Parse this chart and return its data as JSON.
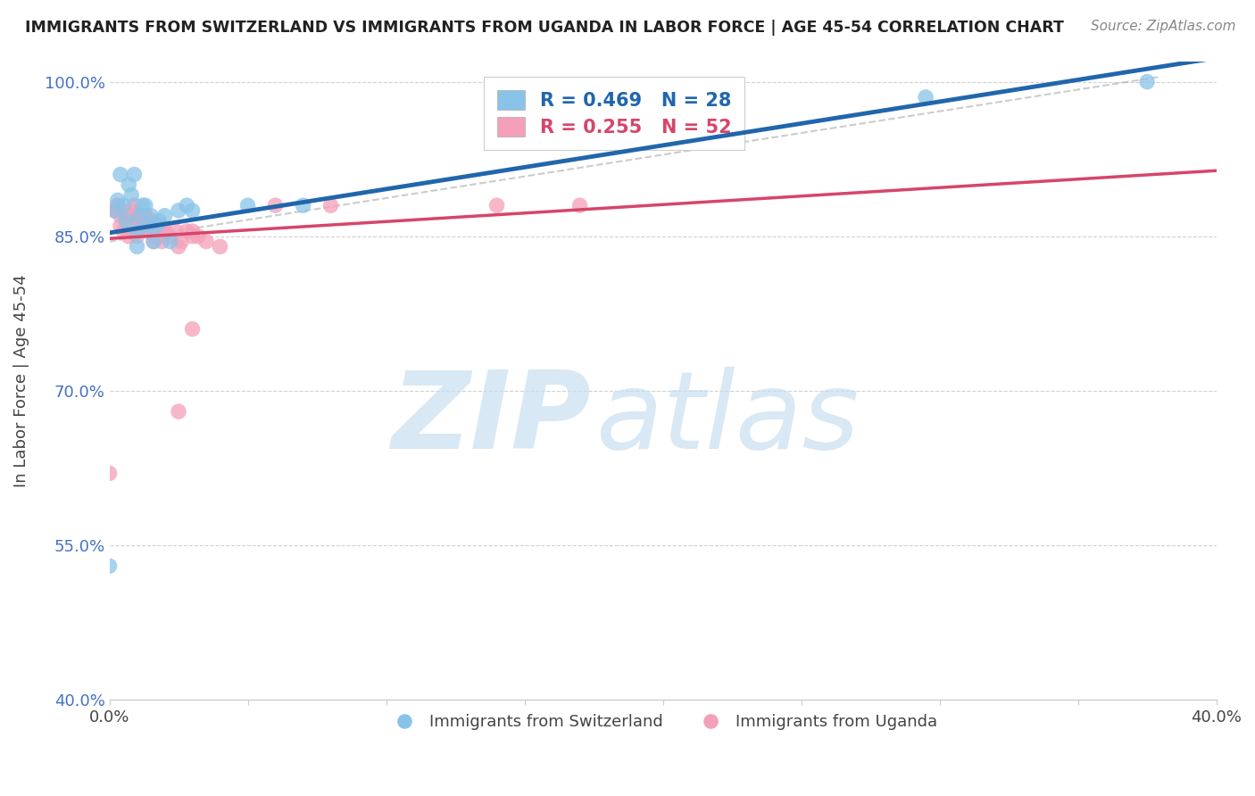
{
  "title": "IMMIGRANTS FROM SWITZERLAND VS IMMIGRANTS FROM UGANDA IN LABOR FORCE | AGE 45-54 CORRELATION CHART",
  "source": "Source: ZipAtlas.com",
  "ylabel": "In Labor Force | Age 45-54",
  "xlim": [
    0.0,
    0.4
  ],
  "ylim": [
    0.4,
    1.02
  ],
  "yticks": [
    0.4,
    0.55,
    0.7,
    0.85,
    1.0
  ],
  "yticklabels": [
    "40.0%",
    "55.0%",
    "70.0%",
    "85.0%",
    "100.0%"
  ],
  "legend_blue_label": "R = 0.469   N = 28",
  "legend_pink_label": "R = 0.255   N = 52",
  "blue_scatter_color": "#89c4e8",
  "pink_scatter_color": "#f4a0b8",
  "blue_line_color": "#2166ac",
  "pink_line_color": "#d6456a",
  "ref_line_color": "#aaaaaa",
  "watermark_color": "#c8dff0",
  "swiss_x": [
    0.0,
    0.002,
    0.003,
    0.004,
    0.005,
    0.006,
    0.007,
    0.008,
    0.009,
    0.01,
    0.011,
    0.012,
    0.014,
    0.016,
    0.018,
    0.02,
    0.022,
    0.025,
    0.028,
    0.03,
    0.01,
    0.013,
    0.015,
    0.017,
    0.05,
    0.07,
    0.295,
    0.375
  ],
  "swiss_y": [
    0.53,
    0.875,
    0.885,
    0.91,
    0.88,
    0.865,
    0.9,
    0.89,
    0.91,
    0.855,
    0.87,
    0.88,
    0.86,
    0.845,
    0.865,
    0.87,
    0.845,
    0.875,
    0.88,
    0.875,
    0.84,
    0.88,
    0.87,
    0.86,
    0.88,
    0.88,
    0.985,
    1.0
  ],
  "uganda_x": [
    0.0,
    0.002,
    0.003,
    0.004,
    0.005,
    0.006,
    0.007,
    0.008,
    0.009,
    0.01,
    0.011,
    0.012,
    0.013,
    0.014,
    0.015,
    0.016,
    0.017,
    0.018,
    0.019,
    0.02,
    0.022,
    0.024,
    0.026,
    0.028,
    0.03,
    0.032,
    0.003,
    0.005,
    0.007,
    0.009,
    0.011,
    0.013,
    0.015,
    0.004,
    0.006,
    0.008,
    0.01,
    0.012,
    0.002,
    0.016,
    0.018,
    0.02,
    0.025,
    0.03,
    0.035,
    0.04,
    0.025,
    0.03,
    0.06,
    0.08,
    0.14,
    0.17
  ],
  "uganda_y": [
    0.62,
    0.875,
    0.88,
    0.86,
    0.855,
    0.87,
    0.85,
    0.865,
    0.87,
    0.85,
    0.855,
    0.86,
    0.87,
    0.855,
    0.865,
    0.845,
    0.85,
    0.86,
    0.845,
    0.855,
    0.85,
    0.855,
    0.845,
    0.855,
    0.855,
    0.85,
    0.88,
    0.875,
    0.87,
    0.88,
    0.865,
    0.87,
    0.86,
    0.87,
    0.87,
    0.875,
    0.86,
    0.87,
    0.875,
    0.855,
    0.85,
    0.855,
    0.84,
    0.85,
    0.845,
    0.84,
    0.68,
    0.76,
    0.88,
    0.88,
    0.88,
    0.88
  ]
}
